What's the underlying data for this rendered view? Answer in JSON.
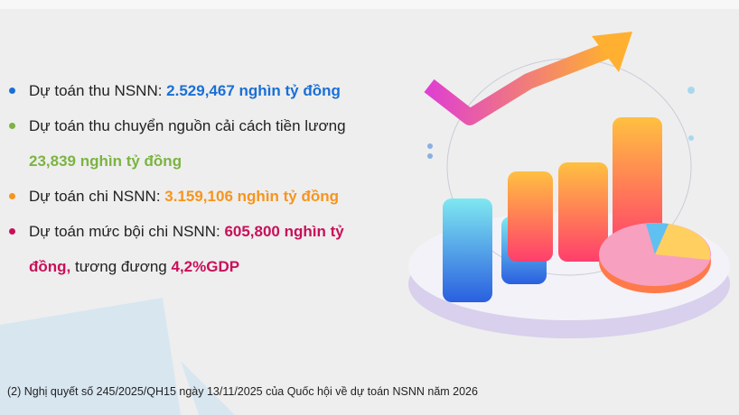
{
  "colors": {
    "blue": "#1a6fd6",
    "green": "#7cb342",
    "orange": "#f7941d",
    "magenta": "#c8105a"
  },
  "items": [
    {
      "label": "Dự toán thu NSNN: ",
      "value": "2.529,467  nghìn tỷ đồng"
    },
    {
      "label": "Dự toán thu chuyển nguồn cải cách tiền lương",
      "value": "23,839 nghìn tỷ đồng"
    },
    {
      "label": "Dự toán chi NSNN: ",
      "value": "3.159,106 nghìn tỷ đồng"
    },
    {
      "label": "Dự toán mức bội chi NSNN: ",
      "value": "605,800 nghìn tỷ",
      "value2": "đồng,",
      "mid": " tương đương ",
      "value3": "4,2%GDP"
    }
  ],
  "footnote": "(2) Nghị quyết số 245/2025/QH15 ngày 13/11/2025 của Quốc hội về dự toán NSNN năm 2026"
}
